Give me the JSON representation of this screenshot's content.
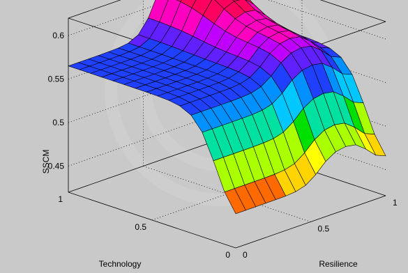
{
  "chart_data": {
    "type": "surface",
    "title": "",
    "xlabel": "Technology",
    "ylabel": "Resilience",
    "zlabel": "SSCM",
    "x_ticks": [
      "0",
      "0.5",
      "1"
    ],
    "y_ticks": [
      "0",
      "0.5",
      "1"
    ],
    "z_ticks": [
      "0.45",
      "0.5",
      "0.55",
      "0.6"
    ],
    "xlim": [
      0,
      1
    ],
    "ylim": [
      0,
      1
    ],
    "zlim": [
      0.42,
      0.62
    ],
    "grid": true,
    "colormap": [
      "#ff0000",
      "#ff6a00",
      "#ffd400",
      "#ffff00",
      "#aaff00",
      "#00e000",
      "#00e0a0",
      "#00c8ff",
      "#0090ff",
      "#2040ff",
      "#6020ff",
      "#c000ff",
      "#ff00c0",
      "#ff0060"
    ],
    "grid_resolution": 15,
    "shape_params": {
      "tech_step_center": 0.12,
      "tech_step_width": 0.06,
      "tech_step_height": 0.12,
      "res_step_center": 0.56,
      "res_step_width": 0.05,
      "res_step_height": 0.035,
      "res_drop_center": 0.88,
      "res_drop_width": 0.04,
      "res_drop_height": 0.03,
      "base": 0.445,
      "corner_boost": 0.05
    }
  }
}
